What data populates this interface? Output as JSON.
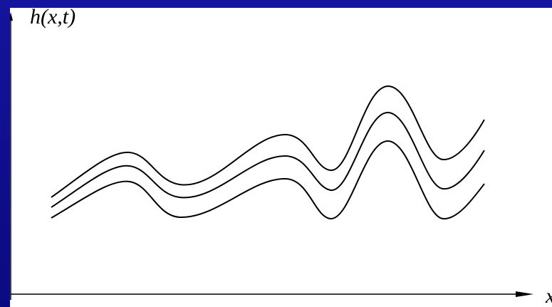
{
  "diagram": {
    "y_axis_label": "h(x,t)",
    "x_axis_label": "x",
    "curve_color": "#000000",
    "background_color": "#ffffff",
    "slide_color": "#0d0d8a",
    "curves": [
      "curve-top",
      "curve-middle",
      "curve-bottom"
    ]
  }
}
